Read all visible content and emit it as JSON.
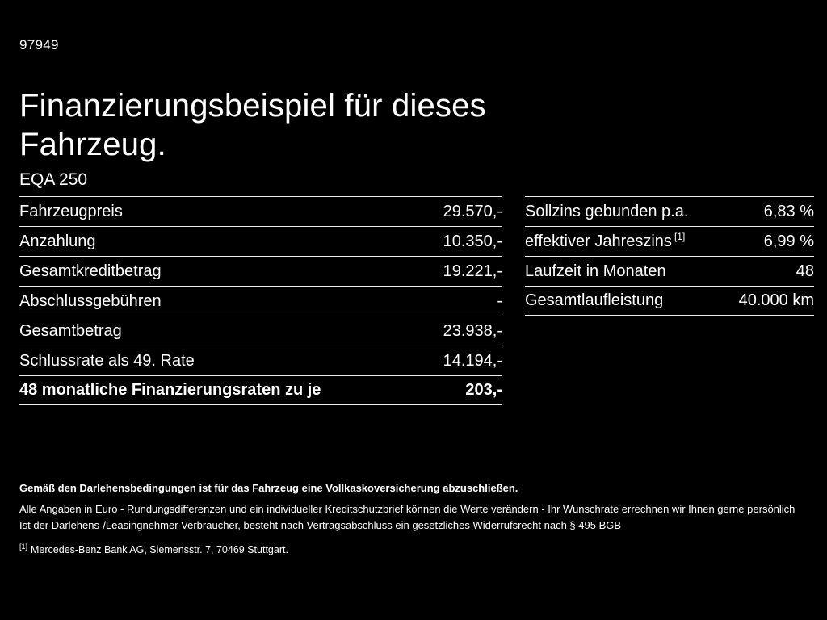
{
  "page": {
    "ref_number": "97949",
    "title": "Finanzierungsbeispiel für dieses Fahrzeug.",
    "model": "EQA 250"
  },
  "tables": {
    "left": {
      "rows": [
        {
          "label": "Fahrzeugpreis",
          "value": "29.570,-"
        },
        {
          "label": "Anzahlung",
          "value": "10.350,-"
        },
        {
          "label": "Gesamtkreditbetrag",
          "value": "19.221,-"
        },
        {
          "label": "Abschlussgebühren",
          "value": "-"
        },
        {
          "label": "Gesamtbetrag",
          "value": "23.938,-"
        },
        {
          "label": "Schlussrate als 49. Rate",
          "value": "14.194,-"
        },
        {
          "label": "48 monatliche Finanzierungsraten zu je",
          "value": "203,-"
        }
      ]
    },
    "right": {
      "rows": [
        {
          "label": "Sollzins gebunden p.a.",
          "value": "6,83 %"
        },
        {
          "label": "effektiver Jahreszins",
          "sup": "[1]",
          "value": "6,99 %"
        },
        {
          "label": "Laufzeit in Monaten",
          "value": "48"
        },
        {
          "label": "Gesamtlaufleistung",
          "value": "40.000 km"
        }
      ]
    }
  },
  "footer": {
    "insurance_note": "Gemäß den Darlehensbedingungen ist für das Fahrzeug eine Vollkaskoversicherung abzuschließen.",
    "disclaimer_line1": "Alle Angaben in Euro - Rundungsdifferenzen und ein individueller Kreditschutzbrief können die Werte verändern - Ihr Wunschrate errechnen wir Ihnen gerne persönlich",
    "disclaimer_line2": "Ist der Darlehens-/Leasingnehmer Verbraucher, besteht nach Vertragsabschluss ein gesetzliches Widerrufsrecht nach § 495 BGB",
    "footnote_marker": "[1]",
    "footnote_text": "Mercedes-Benz Bank AG, Siemensstr. 7, 70469 Stuttgart."
  }
}
